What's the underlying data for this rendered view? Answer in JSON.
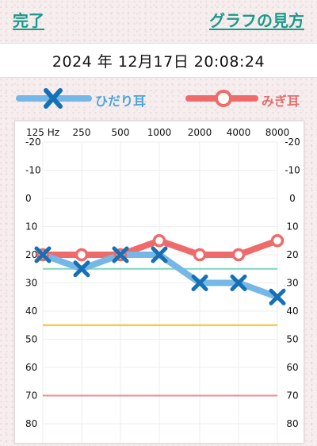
{
  "nav": {
    "done_label": "完了",
    "guide_label": "グラフの見方"
  },
  "date": "2024 年 12月17日 20:08:24",
  "legend": {
    "left": {
      "label": "ひだり耳",
      "color": "#75b7e6",
      "marker": "x-mark-icon"
    },
    "right": {
      "label": "みぎ耳",
      "color": "#ef6b6b",
      "marker": "circle-mark-icon"
    }
  },
  "chart_data": {
    "type": "line",
    "x_ticks": [
      "125 Hz",
      "250",
      "500",
      "1000",
      "2000",
      "4000",
      "8000"
    ],
    "y_ticks": [
      "-20",
      "-10",
      "0",
      "10",
      "20",
      "30",
      "40",
      "50",
      "60",
      "70",
      "80"
    ],
    "ylim": [
      -20,
      80
    ],
    "y_inverted": true,
    "series": [
      {
        "name": "ひだり耳",
        "color": "#75b7e6",
        "marker_color": "#1570b4",
        "marker": "x",
        "values": [
          20,
          25,
          20,
          20,
          30,
          30,
          35
        ]
      },
      {
        "name": "みぎ耳",
        "color": "#ef6b6b",
        "marker": "circle",
        "values": [
          20,
          20,
          20,
          15,
          20,
          20,
          15
        ]
      }
    ],
    "reference_lines": [
      {
        "value": 25,
        "color": "#7fd6c2"
      },
      {
        "value": 45,
        "color": "#f0c020"
      },
      {
        "value": 70,
        "color": "#f28c8c"
      }
    ]
  }
}
